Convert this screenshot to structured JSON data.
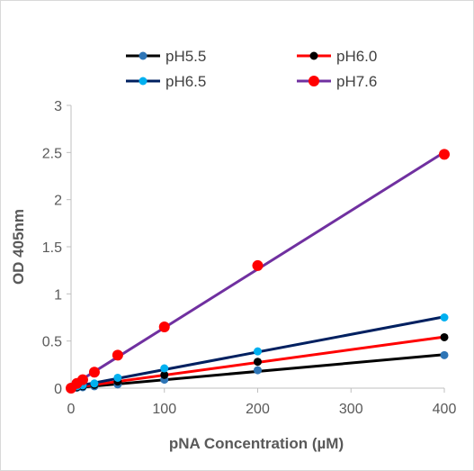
{
  "chart_data": {
    "type": "scatter",
    "xlabel": "pNA Concentration  (µM)",
    "ylabel": "OD 405nm",
    "xlim": [
      0,
      400
    ],
    "ylim": [
      0,
      3
    ],
    "x_ticks": [
      "0",
      "100",
      "200",
      "300",
      "400"
    ],
    "y_ticks": [
      "0",
      "0.5",
      "1",
      "1.5",
      "2",
      "2.5",
      "3"
    ],
    "grid": false,
    "legend_position": "top",
    "x": [
      0,
      6.25,
      12.5,
      25,
      50,
      100,
      200,
      400
    ],
    "series": [
      {
        "name": "pH5.5",
        "line_color": "#000000",
        "marker_color": "#2e75b6",
        "values": [
          0.0,
          0.005,
          0.01,
          0.02,
          0.04,
          0.09,
          0.19,
          0.35
        ]
      },
      {
        "name": "pH6.0",
        "line_color": "#ff0000",
        "marker_color": "#000000",
        "values": [
          0.0,
          0.01,
          0.02,
          0.035,
          0.07,
          0.14,
          0.28,
          0.54
        ]
      },
      {
        "name": "pH6.5",
        "line_color": "#002060",
        "marker_color": "#00b0f0",
        "values": [
          0.0,
          0.02,
          0.03,
          0.05,
          0.11,
          0.21,
          0.39,
          0.75
        ]
      },
      {
        "name": "pH7.6",
        "line_color": "#7030a0",
        "marker_color": "#ff0000",
        "values": [
          0.0,
          0.05,
          0.09,
          0.17,
          0.35,
          0.65,
          1.3,
          2.48
        ]
      }
    ]
  }
}
